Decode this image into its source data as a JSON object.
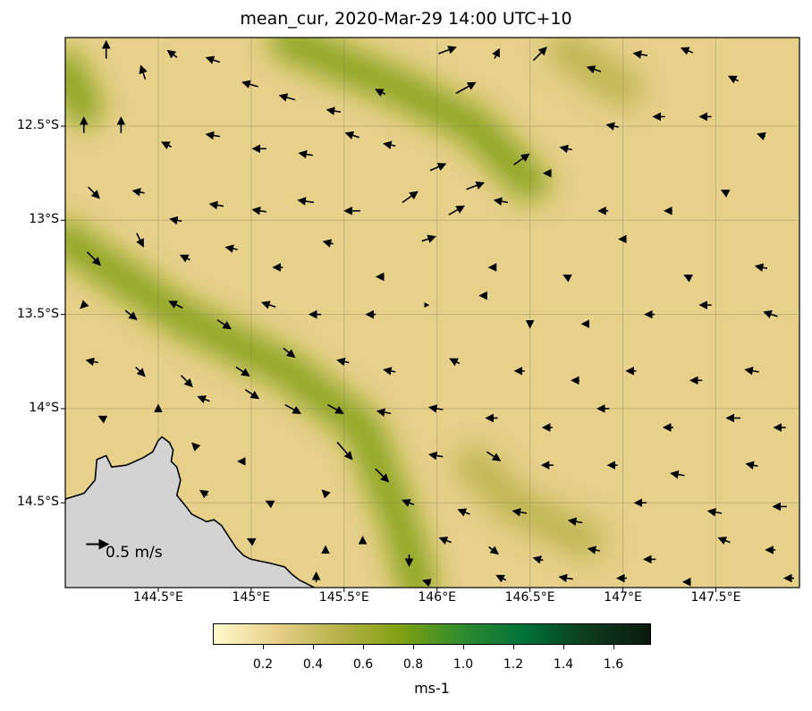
{
  "title": "mean_cur, 2020-Mar-29 14:00 UTC+10",
  "map": {
    "lon_range": [
      144.0,
      147.95
    ],
    "lat_range": [
      -14.95,
      -12.03
    ],
    "lat_ticks": [
      {
        "value": -12.5,
        "label": "12.5°S"
      },
      {
        "value": -13.0,
        "label": "13°S"
      },
      {
        "value": -13.5,
        "label": "13.5°S"
      },
      {
        "value": -14.0,
        "label": "14°S"
      },
      {
        "value": -14.5,
        "label": "14.5°S"
      }
    ],
    "lon_ticks": [
      {
        "value": 144.5,
        "label": "144.5°E"
      },
      {
        "value": 145.0,
        "label": "145°E"
      },
      {
        "value": 145.5,
        "label": "145.5°E"
      },
      {
        "value": 146.0,
        "label": "146°E"
      },
      {
        "value": 146.5,
        "label": "146.5°E"
      },
      {
        "value": 147.0,
        "label": "147°E"
      },
      {
        "value": 147.5,
        "label": "147.5°E"
      }
    ],
    "gridlines": true,
    "land_color": "#d3d3d3",
    "coastline": [
      [
        144.0,
        -14.48
      ],
      [
        144.1,
        -14.45
      ],
      [
        144.16,
        -14.38
      ],
      [
        144.17,
        -14.27
      ],
      [
        144.22,
        -14.25
      ],
      [
        144.25,
        -14.31
      ],
      [
        144.33,
        -14.3
      ],
      [
        144.42,
        -14.26
      ],
      [
        144.47,
        -14.23
      ],
      [
        144.5,
        -14.17
      ],
      [
        144.52,
        -14.15
      ],
      [
        144.56,
        -14.18
      ],
      [
        144.58,
        -14.22
      ],
      [
        144.57,
        -14.28
      ],
      [
        144.6,
        -14.31
      ],
      [
        144.62,
        -14.38
      ],
      [
        144.6,
        -14.46
      ],
      [
        144.65,
        -14.52
      ],
      [
        144.68,
        -14.56
      ],
      [
        144.72,
        -14.58
      ],
      [
        144.76,
        -14.6
      ],
      [
        144.8,
        -14.59
      ],
      [
        144.84,
        -14.62
      ],
      [
        144.88,
        -14.68
      ],
      [
        144.92,
        -14.74
      ],
      [
        144.96,
        -14.78
      ],
      [
        145.0,
        -14.8
      ],
      [
        145.05,
        -14.81
      ],
      [
        145.1,
        -14.82
      ],
      [
        145.18,
        -14.84
      ],
      [
        145.22,
        -14.88
      ],
      [
        145.26,
        -14.91
      ],
      [
        145.3,
        -14.93
      ],
      [
        145.34,
        -14.95
      ]
    ],
    "reference_arrow": {
      "label": "0.5 m/s",
      "lon": 144.17,
      "lat": -14.72,
      "speed": 0.5,
      "direction": "east"
    }
  },
  "chart_data": {
    "type": "heatmap",
    "title": "mean_cur, 2020-Mar-29 14:00 UTC+10",
    "xlabel": "",
    "ylabel": "",
    "x_range": [
      144.0,
      147.95
    ],
    "y_range": [
      -14.95,
      -12.03
    ],
    "colorbar": {
      "label": "ms-1",
      "range": [
        0.0,
        1.75
      ],
      "ticks": [
        0.2,
        0.4,
        0.6,
        0.8,
        1.0,
        1.2,
        1.4,
        1.6
      ],
      "colormap": [
        "#fffacd",
        "#e6d08a",
        "#b8b24a",
        "#7fa012",
        "#2e8b2e",
        "#00703a",
        "#0e3b1e",
        "#0b1a0b"
      ]
    },
    "high_speed_bands": [
      {
        "path": [
          [
            144.0,
            -13.1
          ],
          [
            144.6,
            -13.5
          ],
          [
            145.2,
            -13.8
          ],
          [
            145.6,
            -14.1
          ],
          [
            145.8,
            -14.6
          ],
          [
            145.9,
            -14.95
          ]
        ],
        "peak": 0.8
      },
      {
        "path": [
          [
            145.2,
            -12.05
          ],
          [
            145.8,
            -12.3
          ],
          [
            146.2,
            -12.5
          ],
          [
            146.5,
            -12.8
          ]
        ],
        "peak": 0.7
      },
      {
        "path": [
          [
            144.0,
            -12.2
          ],
          [
            144.1,
            -12.4
          ]
        ],
        "peak": 0.75
      },
      {
        "path": [
          [
            146.2,
            -14.3
          ],
          [
            146.4,
            -14.5
          ],
          [
            146.8,
            -14.7
          ]
        ],
        "peak": 0.55
      },
      {
        "path": [
          [
            146.7,
            -12.1
          ],
          [
            147.0,
            -12.3
          ]
        ],
        "peak": 0.6
      }
    ],
    "vectors": [
      {
        "lon": 144.22,
        "lat": -12.1,
        "u": 0.0,
        "v": 0.4
      },
      {
        "lon": 144.42,
        "lat": -12.22,
        "u": -0.1,
        "v": 0.3
      },
      {
        "lon": 144.58,
        "lat": -12.12,
        "u": -0.2,
        "v": 0.15
      },
      {
        "lon": 144.8,
        "lat": -12.15,
        "u": -0.3,
        "v": 0.1
      },
      {
        "lon": 145.0,
        "lat": -12.28,
        "u": -0.35,
        "v": 0.1
      },
      {
        "lon": 145.2,
        "lat": -12.35,
        "u": -0.35,
        "v": 0.1
      },
      {
        "lon": 145.45,
        "lat": -12.42,
        "u": -0.3,
        "v": 0.05
      },
      {
        "lon": 145.7,
        "lat": -12.32,
        "u": -0.2,
        "v": 0.1
      },
      {
        "lon": 146.05,
        "lat": -12.1,
        "u": 0.4,
        "v": 0.15
      },
      {
        "lon": 146.15,
        "lat": -12.3,
        "u": 0.45,
        "v": 0.25
      },
      {
        "lon": 146.32,
        "lat": -12.12,
        "u": 0.1,
        "v": 0.2
      },
      {
        "lon": 146.55,
        "lat": -12.12,
        "u": 0.3,
        "v": 0.3
      },
      {
        "lon": 146.85,
        "lat": -12.2,
        "u": -0.3,
        "v": 0.1
      },
      {
        "lon": 147.1,
        "lat": -12.12,
        "u": -0.3,
        "v": 0.05
      },
      {
        "lon": 147.35,
        "lat": -12.1,
        "u": -0.25,
        "v": 0.1
      },
      {
        "lon": 147.6,
        "lat": -12.25,
        "u": -0.2,
        "v": 0.1
      },
      {
        "lon": 144.1,
        "lat": -12.5,
        "u": 0.0,
        "v": 0.35
      },
      {
        "lon": 144.3,
        "lat": -12.5,
        "u": 0.0,
        "v": 0.35
      },
      {
        "lon": 144.55,
        "lat": -12.6,
        "u": -0.2,
        "v": 0.1
      },
      {
        "lon": 144.8,
        "lat": -12.55,
        "u": -0.3,
        "v": 0.05
      },
      {
        "lon": 145.05,
        "lat": -12.62,
        "u": -0.3,
        "v": 0.0
      },
      {
        "lon": 145.3,
        "lat": -12.65,
        "u": -0.3,
        "v": 0.05
      },
      {
        "lon": 145.55,
        "lat": -12.55,
        "u": -0.3,
        "v": 0.1
      },
      {
        "lon": 145.75,
        "lat": -12.6,
        "u": -0.25,
        "v": 0.05
      },
      {
        "lon": 146.0,
        "lat": -12.72,
        "u": 0.35,
        "v": 0.15
      },
      {
        "lon": 146.2,
        "lat": -12.82,
        "u": 0.4,
        "v": 0.15
      },
      {
        "lon": 146.45,
        "lat": -12.68,
        "u": 0.35,
        "v": 0.25
      },
      {
        "lon": 146.7,
        "lat": -12.62,
        "u": -0.25,
        "v": 0.05
      },
      {
        "lon": 146.95,
        "lat": -12.5,
        "u": -0.25,
        "v": 0.05
      },
      {
        "lon": 147.2,
        "lat": -12.45,
        "u": -0.25,
        "v": 0.0
      },
      {
        "lon": 147.45,
        "lat": -12.45,
        "u": -0.25,
        "v": 0.0
      },
      {
        "lon": 147.75,
        "lat": -12.55,
        "u": -0.15,
        "v": 0.05
      },
      {
        "lon": 144.15,
        "lat": -12.85,
        "u": 0.25,
        "v": -0.25
      },
      {
        "lon": 144.4,
        "lat": -12.85,
        "u": -0.25,
        "v": 0.05
      },
      {
        "lon": 144.6,
        "lat": -13.0,
        "u": -0.25,
        "v": 0.05
      },
      {
        "lon": 144.82,
        "lat": -12.92,
        "u": -0.3,
        "v": 0.05
      },
      {
        "lon": 145.05,
        "lat": -12.95,
        "u": -0.3,
        "v": 0.05
      },
      {
        "lon": 145.3,
        "lat": -12.9,
        "u": -0.35,
        "v": 0.05
      },
      {
        "lon": 145.55,
        "lat": -12.95,
        "u": -0.35,
        "v": 0.0
      },
      {
        "lon": 145.85,
        "lat": -12.88,
        "u": 0.35,
        "v": 0.25
      },
      {
        "lon": 146.1,
        "lat": -12.95,
        "u": 0.35,
        "v": 0.2
      },
      {
        "lon": 146.35,
        "lat": -12.9,
        "u": -0.3,
        "v": 0.05
      },
      {
        "lon": 146.6,
        "lat": -12.75,
        "u": -0.15,
        "v": 0.0
      },
      {
        "lon": 146.9,
        "lat": -12.95,
        "u": -0.2,
        "v": 0.0
      },
      {
        "lon": 147.25,
        "lat": -12.95,
        "u": -0.15,
        "v": 0.0
      },
      {
        "lon": 147.55,
        "lat": -12.85,
        "u": -0.1,
        "v": 0.05
      },
      {
        "lon": 144.15,
        "lat": -13.2,
        "u": 0.3,
        "v": -0.3
      },
      {
        "lon": 144.4,
        "lat": -13.1,
        "u": 0.15,
        "v": -0.3
      },
      {
        "lon": 144.65,
        "lat": -13.2,
        "u": -0.2,
        "v": 0.1
      },
      {
        "lon": 144.9,
        "lat": -13.15,
        "u": -0.25,
        "v": 0.05
      },
      {
        "lon": 145.15,
        "lat": -13.25,
        "u": -0.2,
        "v": 0.0
      },
      {
        "lon": 145.42,
        "lat": -13.12,
        "u": -0.2,
        "v": 0.05
      },
      {
        "lon": 145.7,
        "lat": -13.3,
        "u": -0.15,
        "v": 0.0
      },
      {
        "lon": 145.95,
        "lat": -13.1,
        "u": 0.3,
        "v": 0.1
      },
      {
        "lon": 146.3,
        "lat": -13.25,
        "u": -0.1,
        "v": 0.0
      },
      {
        "lon": 146.7,
        "lat": -13.3,
        "u": -0.1,
        "v": 0.05
      },
      {
        "lon": 147.0,
        "lat": -13.1,
        "u": -0.1,
        "v": 0.0
      },
      {
        "lon": 147.35,
        "lat": -13.3,
        "u": -0.1,
        "v": 0.05
      },
      {
        "lon": 147.75,
        "lat": -13.25,
        "u": -0.25,
        "v": 0.05
      },
      {
        "lon": 144.1,
        "lat": -13.45,
        "u": -0.1,
        "v": -0.1
      },
      {
        "lon": 144.35,
        "lat": -13.5,
        "u": 0.25,
        "v": -0.2
      },
      {
        "lon": 144.6,
        "lat": -13.45,
        "u": -0.3,
        "v": 0.15
      },
      {
        "lon": 144.85,
        "lat": -13.55,
        "u": 0.3,
        "v": -0.2
      },
      {
        "lon": 145.1,
        "lat": -13.45,
        "u": -0.3,
        "v": 0.1
      },
      {
        "lon": 145.35,
        "lat": -13.5,
        "u": -0.25,
        "v": 0.0
      },
      {
        "lon": 145.65,
        "lat": -13.5,
        "u": -0.2,
        "v": 0.0
      },
      {
        "lon": 145.95,
        "lat": -13.45,
        "u": 0.0,
        "v": 0.0
      },
      {
        "lon": 146.25,
        "lat": -13.4,
        "u": -0.1,
        "v": 0.0
      },
      {
        "lon": 146.5,
        "lat": -13.55,
        "u": 0.0,
        "v": -0.1
      },
      {
        "lon": 146.8,
        "lat": -13.55,
        "u": -0.1,
        "v": 0.0
      },
      {
        "lon": 147.15,
        "lat": -13.5,
        "u": -0.2,
        "v": 0.0
      },
      {
        "lon": 147.45,
        "lat": -13.45,
        "u": -0.25,
        "v": 0.0
      },
      {
        "lon": 147.8,
        "lat": -13.5,
        "u": -0.3,
        "v": 0.1
      },
      {
        "lon": 144.15,
        "lat": -13.75,
        "u": -0.25,
        "v": 0.05
      },
      {
        "lon": 144.4,
        "lat": -13.8,
        "u": 0.2,
        "v": -0.2
      },
      {
        "lon": 144.65,
        "lat": -13.85,
        "u": 0.25,
        "v": -0.25
      },
      {
        "lon": 144.95,
        "lat": -13.8,
        "u": 0.3,
        "v": -0.2
      },
      {
        "lon": 145.2,
        "lat": -13.7,
        "u": 0.25,
        "v": -0.2
      },
      {
        "lon": 145.5,
        "lat": -13.75,
        "u": -0.25,
        "v": 0.05
      },
      {
        "lon": 145.75,
        "lat": -13.8,
        "u": -0.25,
        "v": 0.05
      },
      {
        "lon": 146.1,
        "lat": -13.75,
        "u": -0.2,
        "v": 0.1
      },
      {
        "lon": 146.45,
        "lat": -13.8,
        "u": -0.2,
        "v": 0.0
      },
      {
        "lon": 146.75,
        "lat": -13.85,
        "u": -0.15,
        "v": 0.0
      },
      {
        "lon": 147.05,
        "lat": -13.8,
        "u": -0.2,
        "v": 0.0
      },
      {
        "lon": 147.4,
        "lat": -13.85,
        "u": -0.25,
        "v": 0.0
      },
      {
        "lon": 147.7,
        "lat": -13.8,
        "u": -0.3,
        "v": 0.05
      },
      {
        "lon": 144.2,
        "lat": -14.05,
        "u": -0.1,
        "v": 0.05
      },
      {
        "lon": 144.5,
        "lat": -14.0,
        "u": 0.0,
        "v": 0.1
      },
      {
        "lon": 144.75,
        "lat": -13.95,
        "u": -0.25,
        "v": 0.1
      },
      {
        "lon": 145.0,
        "lat": -13.92,
        "u": 0.3,
        "v": -0.2
      },
      {
        "lon": 145.22,
        "lat": -14.0,
        "u": 0.35,
        "v": -0.2
      },
      {
        "lon": 145.45,
        "lat": -14.0,
        "u": 0.35,
        "v": -0.2
      },
      {
        "lon": 145.72,
        "lat": -14.02,
        "u": -0.3,
        "v": 0.05
      },
      {
        "lon": 146.0,
        "lat": -14.0,
        "u": -0.3,
        "v": 0.05
      },
      {
        "lon": 146.3,
        "lat": -14.05,
        "u": -0.25,
        "v": 0.0
      },
      {
        "lon": 146.6,
        "lat": -14.1,
        "u": -0.2,
        "v": 0.0
      },
      {
        "lon": 146.9,
        "lat": -14.0,
        "u": -0.25,
        "v": 0.0
      },
      {
        "lon": 147.25,
        "lat": -14.1,
        "u": -0.2,
        "v": 0.0
      },
      {
        "lon": 147.6,
        "lat": -14.05,
        "u": -0.3,
        "v": 0.0
      },
      {
        "lon": 147.85,
        "lat": -14.1,
        "u": -0.25,
        "v": 0.0
      },
      {
        "lon": 144.7,
        "lat": -14.2,
        "u": -0.1,
        "v": 0.1
      },
      {
        "lon": 144.95,
        "lat": -14.28,
        "u": -0.1,
        "v": 0.0
      },
      {
        "lon": 145.5,
        "lat": -14.22,
        "u": 0.35,
        "v": -0.4
      },
      {
        "lon": 145.7,
        "lat": -14.35,
        "u": 0.3,
        "v": -0.3
      },
      {
        "lon": 146.0,
        "lat": -14.25,
        "u": -0.3,
        "v": 0.05
      },
      {
        "lon": 146.3,
        "lat": -14.25,
        "u": 0.3,
        "v": -0.2
      },
      {
        "lon": 146.6,
        "lat": -14.3,
        "u": -0.25,
        "v": 0.0
      },
      {
        "lon": 146.95,
        "lat": -14.3,
        "u": -0.2,
        "v": 0.0
      },
      {
        "lon": 147.3,
        "lat": -14.35,
        "u": -0.3,
        "v": 0.05
      },
      {
        "lon": 147.7,
        "lat": -14.3,
        "u": -0.25,
        "v": 0.05
      },
      {
        "lon": 144.75,
        "lat": -14.45,
        "u": -0.15,
        "v": 0.1
      },
      {
        "lon": 145.1,
        "lat": -14.5,
        "u": -0.1,
        "v": 0.05
      },
      {
        "lon": 145.4,
        "lat": -14.45,
        "u": -0.1,
        "v": 0.1
      },
      {
        "lon": 145.85,
        "lat": -14.5,
        "u": -0.25,
        "v": 0.1
      },
      {
        "lon": 146.15,
        "lat": -14.55,
        "u": -0.25,
        "v": 0.1
      },
      {
        "lon": 146.45,
        "lat": -14.55,
        "u": -0.3,
        "v": 0.05
      },
      {
        "lon": 146.75,
        "lat": -14.6,
        "u": -0.3,
        "v": 0.05
      },
      {
        "lon": 147.1,
        "lat": -14.5,
        "u": -0.25,
        "v": 0.0
      },
      {
        "lon": 147.5,
        "lat": -14.55,
        "u": -0.3,
        "v": 0.05
      },
      {
        "lon": 147.85,
        "lat": -14.52,
        "u": -0.3,
        "v": 0.0
      },
      {
        "lon": 145.0,
        "lat": -14.7,
        "u": -0.1,
        "v": 0.05
      },
      {
        "lon": 145.4,
        "lat": -14.75,
        "u": 0.0,
        "v": 0.1
      },
      {
        "lon": 145.6,
        "lat": -14.7,
        "u": 0.0,
        "v": 0.1
      },
      {
        "lon": 145.85,
        "lat": -14.8,
        "u": 0.0,
        "v": -0.25
      },
      {
        "lon": 146.05,
        "lat": -14.7,
        "u": -0.25,
        "v": 0.1
      },
      {
        "lon": 146.3,
        "lat": -14.75,
        "u": 0.2,
        "v": -0.15
      },
      {
        "lon": 146.55,
        "lat": -14.8,
        "u": -0.2,
        "v": 0.05
      },
      {
        "lon": 146.85,
        "lat": -14.75,
        "u": -0.25,
        "v": 0.05
      },
      {
        "lon": 147.15,
        "lat": -14.8,
        "u": -0.25,
        "v": 0.0
      },
      {
        "lon": 147.55,
        "lat": -14.7,
        "u": -0.25,
        "v": 0.1
      },
      {
        "lon": 147.8,
        "lat": -14.75,
        "u": -0.2,
        "v": 0.0
      },
      {
        "lon": 145.35,
        "lat": -14.9,
        "u": 0.0,
        "v": 0.2
      },
      {
        "lon": 145.95,
        "lat": -14.92,
        "u": -0.15,
        "v": 0.05
      },
      {
        "lon": 146.35,
        "lat": -14.9,
        "u": -0.2,
        "v": 0.1
      },
      {
        "lon": 146.7,
        "lat": -14.9,
        "u": -0.3,
        "v": 0.05
      },
      {
        "lon": 147.0,
        "lat": -14.9,
        "u": -0.2,
        "v": 0.0
      },
      {
        "lon": 147.35,
        "lat": -14.92,
        "u": -0.15,
        "v": 0.0
      },
      {
        "lon": 147.9,
        "lat": -14.9,
        "u": -0.2,
        "v": 0.0
      }
    ]
  }
}
